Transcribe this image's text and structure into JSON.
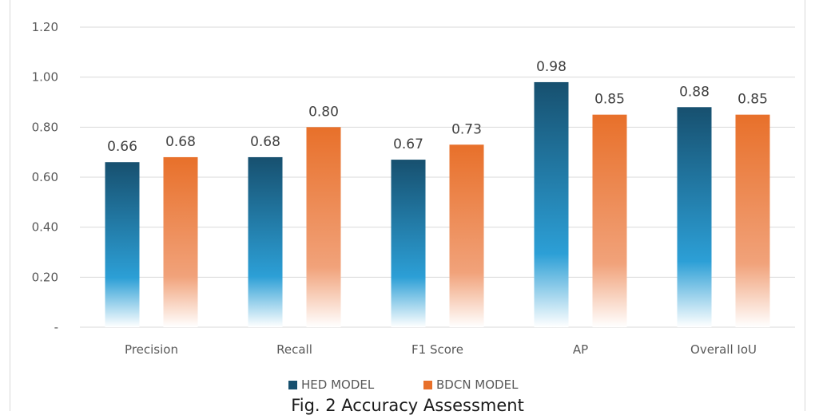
{
  "caption": "Fig. 2 Accuracy Assessment",
  "colors": {
    "hed_top": "#17506f",
    "hed_mid": "#2c9fd6",
    "bdcn_top": "#e8702a",
    "bdcn_mid": "#f1a27a",
    "grid": "#d9d9d9",
    "text": "#595959"
  },
  "chart_data": {
    "type": "bar",
    "title": "",
    "xlabel": "",
    "ylabel": "",
    "categories": [
      "Precision",
      "Recall",
      "F1 Score",
      "AP",
      "Overall IoU"
    ],
    "series": [
      {
        "name": "HED MODEL",
        "values": [
          0.66,
          0.68,
          0.67,
          0.98,
          0.88
        ],
        "labels": [
          "0.66",
          "0.68",
          "0.67",
          "0.98",
          "0.88"
        ]
      },
      {
        "name": "BDCN MODEL",
        "values": [
          0.68,
          0.8,
          0.73,
          0.85,
          0.85
        ],
        "labels": [
          "0.68",
          "0.80",
          "0.73",
          "0.85",
          "0.85"
        ]
      }
    ],
    "ylim": [
      0,
      1.2
    ],
    "yticks": [
      0,
      0.2,
      0.4,
      0.6,
      0.8,
      1.0,
      1.2
    ],
    "ytick_labels": [
      "-",
      "0.20",
      "0.40",
      "0.60",
      "0.80",
      "1.00",
      "1.20"
    ],
    "grid": true,
    "legend": "bottom"
  }
}
